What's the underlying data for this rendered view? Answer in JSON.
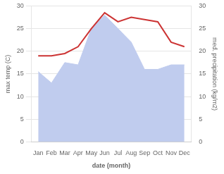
{
  "chart_data": {
    "type": "line",
    "categories": [
      "Jan",
      "Feb",
      "Mar",
      "Apr",
      "May",
      "Jun",
      "Jul",
      "Aug",
      "Sep",
      "Oct",
      "Nov",
      "Dec"
    ],
    "series": [
      {
        "type": "line",
        "color": "#cc3333",
        "values": [
          19.0,
          19.0,
          19.5,
          21.0,
          25.0,
          28.5,
          26.5,
          27.5,
          27.0,
          26.5,
          22.0,
          21.0
        ]
      },
      {
        "type": "area",
        "color": "#c0ccee",
        "axis": "y2",
        "values": [
          15.5,
          13.0,
          17.5,
          17.0,
          25.0,
          28.0,
          25.0,
          22.0,
          16.0,
          16.0,
          17.0,
          17.0
        ]
      }
    ],
    "xlabel": "date (month)",
    "ylabel": "max temp (C)",
    "y2label": "med. precipitation (kg/m2)",
    "ylim": [
      0,
      30
    ],
    "yticks": [
      0,
      5,
      10,
      15,
      20,
      25,
      30
    ],
    "y2lim": [
      0,
      30
    ],
    "y2ticks": [
      0,
      5,
      10,
      15,
      20,
      25,
      30
    ],
    "grid": "y"
  }
}
